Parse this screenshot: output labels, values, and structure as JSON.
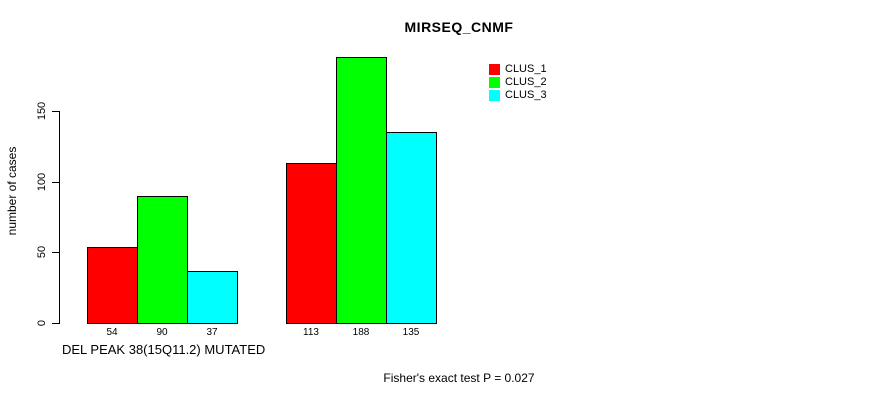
{
  "chart_data": {
    "type": "bar",
    "title": "MIRSEQ_CNMF",
    "xlabel": "DEL PEAK 38(15Q11.2) MUTATED",
    "ylabel": "number of cases",
    "yticks": [
      0,
      50,
      100,
      150
    ],
    "ylim": [
      0,
      190
    ],
    "grid": false,
    "legend_position": "top-right",
    "bar_value_labels_shown": true,
    "group_count": 2,
    "series": [
      {
        "name": "CLUS_1",
        "color": "#FF0000",
        "values": [
          54,
          113
        ]
      },
      {
        "name": "CLUS_2",
        "color": "#00FF00",
        "values": [
          90,
          188
        ]
      },
      {
        "name": "CLUS_3",
        "color": "#00FFFF",
        "values": [
          37,
          135
        ]
      }
    ],
    "annotation": "Fisher's exact test P = 0.027"
  },
  "colors": {
    "background": "#FFFFFF",
    "axis": "#000000",
    "text": "#000000"
  }
}
